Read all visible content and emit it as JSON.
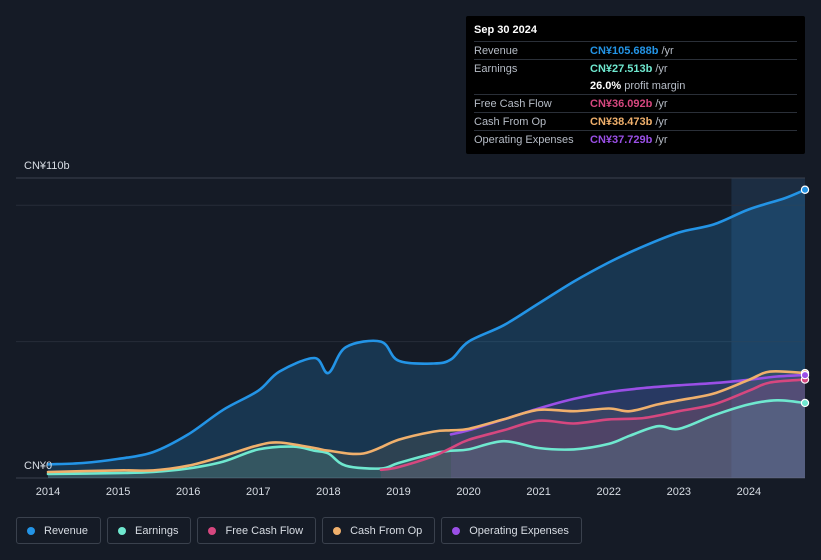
{
  "chart_data": {
    "type": "line",
    "title": "",
    "y_axis": {
      "top_label": "CN¥110b",
      "bottom_label": "CN¥0",
      "ylim": [
        0,
        110
      ]
    },
    "x_ticks": [
      "2014",
      "2015",
      "2016",
      "2017",
      "2018",
      "2019",
      "2020",
      "2021",
      "2022",
      "2023",
      "2024"
    ],
    "xlim": [
      2014.0,
      2024.8
    ],
    "highlight_from": 2023.75,
    "series": [
      {
        "name": "Revenue",
        "key": "revenue",
        "color": "#2394e6",
        "points": [
          [
            2014.0,
            5.0
          ],
          [
            2014.5,
            5.5
          ],
          [
            2015.0,
            7.0
          ],
          [
            2015.5,
            9.5
          ],
          [
            2016.0,
            16.0
          ],
          [
            2016.5,
            25.0
          ],
          [
            2017.0,
            32.0
          ],
          [
            2017.3,
            39.0
          ],
          [
            2017.8,
            44.0
          ],
          [
            2018.0,
            38.5
          ],
          [
            2018.25,
            48.0
          ],
          [
            2018.75,
            50.0
          ],
          [
            2019.0,
            43.0
          ],
          [
            2019.5,
            42.0
          ],
          [
            2019.75,
            43.5
          ],
          [
            2020.0,
            50.0
          ],
          [
            2020.5,
            56.0
          ],
          [
            2021.0,
            64.0
          ],
          [
            2021.5,
            72.0
          ],
          [
            2022.0,
            79.0
          ],
          [
            2022.5,
            85.0
          ],
          [
            2023.0,
            90.0
          ],
          [
            2023.5,
            93.0
          ],
          [
            2024.0,
            98.5
          ],
          [
            2024.5,
            102.5
          ],
          [
            2024.8,
            105.688
          ]
        ]
      },
      {
        "name": "Earnings",
        "key": "earnings",
        "color": "#6fe8cf",
        "points": [
          [
            2014.0,
            1.5
          ],
          [
            2015.0,
            1.8
          ],
          [
            2015.5,
            2.2
          ],
          [
            2016.0,
            3.5
          ],
          [
            2016.5,
            6.0
          ],
          [
            2017.0,
            10.5
          ],
          [
            2017.5,
            11.5
          ],
          [
            2017.8,
            10.0
          ],
          [
            2018.0,
            9.0
          ],
          [
            2018.25,
            4.5
          ],
          [
            2018.75,
            3.5
          ],
          [
            2019.0,
            5.5
          ],
          [
            2019.5,
            9.0
          ],
          [
            2019.75,
            10.0
          ],
          [
            2020.0,
            10.5
          ],
          [
            2020.5,
            13.5
          ],
          [
            2021.0,
            11.0
          ],
          [
            2021.5,
            10.5
          ],
          [
            2022.0,
            12.5
          ],
          [
            2022.3,
            15.5
          ],
          [
            2022.7,
            19.0
          ],
          [
            2023.0,
            18.0
          ],
          [
            2023.5,
            23.0
          ],
          [
            2024.0,
            27.0
          ],
          [
            2024.4,
            28.5
          ],
          [
            2024.8,
            27.513
          ]
        ]
      },
      {
        "name": "Free Cash Flow",
        "key": "fcf",
        "color": "#d6477f",
        "points": [
          [
            2018.75,
            3.0
          ],
          [
            2019.0,
            4.0
          ],
          [
            2019.5,
            8.0
          ],
          [
            2019.75,
            11.0
          ],
          [
            2020.0,
            14.0
          ],
          [
            2020.5,
            17.5
          ],
          [
            2021.0,
            21.0
          ],
          [
            2021.5,
            20.0
          ],
          [
            2022.0,
            21.5
          ],
          [
            2022.5,
            22.0
          ],
          [
            2023.0,
            24.5
          ],
          [
            2023.5,
            27.0
          ],
          [
            2024.0,
            32.0
          ],
          [
            2024.3,
            35.0
          ],
          [
            2024.8,
            36.092
          ]
        ]
      },
      {
        "name": "Cash From Op",
        "key": "cfo",
        "color": "#f0b06c",
        "points": [
          [
            2014.0,
            2.2
          ],
          [
            2015.0,
            2.8
          ],
          [
            2015.5,
            2.8
          ],
          [
            2016.0,
            4.5
          ],
          [
            2016.5,
            8.0
          ],
          [
            2017.0,
            12.0
          ],
          [
            2017.3,
            13.0
          ],
          [
            2017.8,
            11.0
          ],
          [
            2018.0,
            10.0
          ],
          [
            2018.5,
            9.0
          ],
          [
            2019.0,
            14.0
          ],
          [
            2019.5,
            17.0
          ],
          [
            2019.75,
            17.5
          ],
          [
            2020.0,
            18.0
          ],
          [
            2020.5,
            21.5
          ],
          [
            2021.0,
            25.0
          ],
          [
            2021.5,
            24.5
          ],
          [
            2022.0,
            25.5
          ],
          [
            2022.3,
            24.5
          ],
          [
            2022.7,
            27.0
          ],
          [
            2023.0,
            28.5
          ],
          [
            2023.5,
            31.0
          ],
          [
            2024.0,
            36.0
          ],
          [
            2024.3,
            39.0
          ],
          [
            2024.8,
            38.473
          ]
        ]
      },
      {
        "name": "Operating Expenses",
        "key": "opex",
        "color": "#9a4fe6",
        "points": [
          [
            2019.75,
            16.0
          ],
          [
            2020.0,
            17.5
          ],
          [
            2020.5,
            21.5
          ],
          [
            2021.0,
            25.5
          ],
          [
            2021.5,
            29.0
          ],
          [
            2022.0,
            31.5
          ],
          [
            2022.5,
            33.0
          ],
          [
            2023.0,
            34.0
          ],
          [
            2023.5,
            34.8
          ],
          [
            2024.0,
            36.0
          ],
          [
            2024.4,
            37.2
          ],
          [
            2024.8,
            37.729
          ]
        ]
      }
    ]
  },
  "tooltip": {
    "date": "Sep 30 2024",
    "unit": "/yr",
    "rows": [
      {
        "label": "Revenue",
        "value": "CN¥105.688b",
        "color": "#2394e6"
      },
      {
        "label": "Earnings",
        "value": "CN¥27.513b",
        "color": "#6fe8cf"
      },
      {
        "label": "",
        "value": "26.0%",
        "suffix": "profit margin"
      },
      {
        "label": "Free Cash Flow",
        "value": "CN¥36.092b",
        "color": "#d6477f"
      },
      {
        "label": "Cash From Op",
        "value": "CN¥38.473b",
        "color": "#f0b06c"
      },
      {
        "label": "Operating Expenses",
        "value": "CN¥37.729b",
        "color": "#9a4fe6"
      }
    ]
  },
  "legend": [
    {
      "label": "Revenue",
      "color": "#2394e6"
    },
    {
      "label": "Earnings",
      "color": "#6fe8cf"
    },
    {
      "label": "Free Cash Flow",
      "color": "#d6477f"
    },
    {
      "label": "Cash From Op",
      "color": "#f0b06c"
    },
    {
      "label": "Operating Expenses",
      "color": "#9a4fe6"
    }
  ]
}
